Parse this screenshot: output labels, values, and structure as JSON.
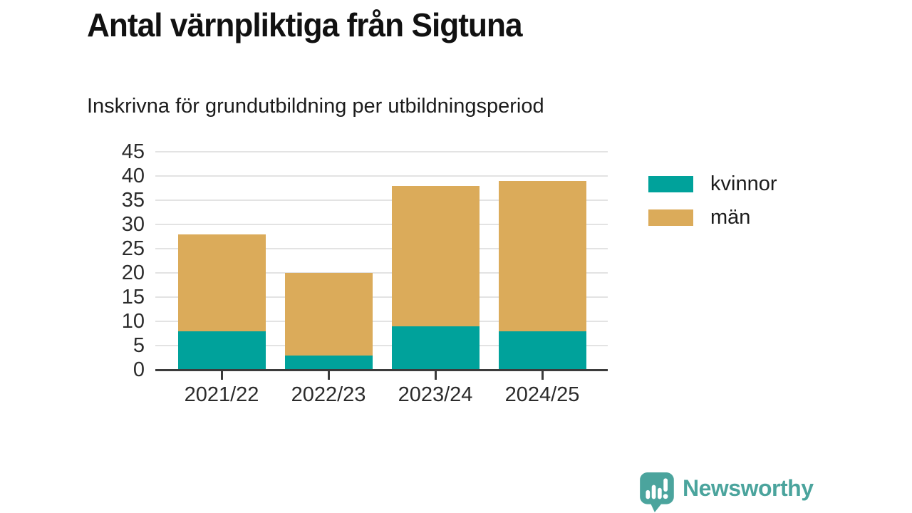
{
  "title": "Antal värnpliktiga från Sigtuna",
  "subtitle": "Inskrivna för grundutbildning per utbildningsperiod",
  "chart_data": {
    "type": "bar",
    "stacked": true,
    "title": "Antal värnpliktiga från Sigtuna",
    "subtitle": "Inskrivna för grundutbildning per utbildningsperiod",
    "categories": [
      "2021/22",
      "2022/23",
      "2023/24",
      "2024/25"
    ],
    "series": [
      {
        "name": "kvinnor",
        "color": "#00A29B",
        "values": [
          8,
          3,
          9,
          8
        ]
      },
      {
        "name": "män",
        "color": "#DBAB5A",
        "values": [
          20,
          17,
          29,
          31
        ]
      }
    ],
    "totals": [
      28,
      20,
      38,
      39
    ],
    "xlabel": "",
    "ylabel": "",
    "ylim": [
      0,
      45
    ],
    "yticks": [
      0,
      5,
      10,
      15,
      20,
      25,
      30,
      35,
      40,
      45
    ],
    "grid": true,
    "legend_position": "right",
    "grid_color": "#e3e3e3",
    "axis_color": "#3b3b3b"
  },
  "footer": {
    "brand": "Newsworthy",
    "brand_color": "#4BA49D",
    "logo_icon": "speech-bubble-bar-chart-icon"
  }
}
